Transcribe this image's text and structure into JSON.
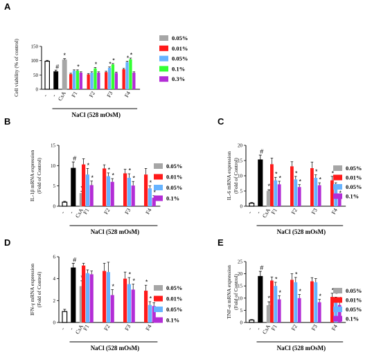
{
  "chart_data": [
    {
      "panel": "A",
      "type": "bar",
      "ylabel": "Cell viability (% of control)",
      "ylim": [
        0,
        150
      ],
      "yticks": [
        0,
        50,
        100,
        150
      ],
      "xlabel": "NaCl (528 mOsM)",
      "minus_labels": [
        "-",
        "-"
      ],
      "categories": [
        "CsA",
        "F1",
        "F2",
        "F3",
        "F4"
      ],
      "controls": [
        {
          "value": 98,
          "err": 3,
          "style": "outline",
          "marker": ""
        },
        {
          "value": 62,
          "err": 5,
          "style": "black",
          "marker": "#"
        },
        {
          "value": 103,
          "err": 4,
          "style": "gray",
          "marker": "*"
        }
      ],
      "legend": [
        "0.05%",
        "0.01%",
        "0.05%",
        "0.1%",
        "0.3%"
      ],
      "colors": [
        "#a6a6a6",
        "#ff1a1a",
        "#66b3ff",
        "#33ff33",
        "#b32dd6"
      ],
      "groups": [
        {
          "values": [
            53,
            65,
            65,
            58
          ],
          "errs": [
            3,
            3,
            3,
            3
          ],
          "markers": [
            "",
            "",
            "*",
            ""
          ]
        },
        {
          "values": [
            52,
            58,
            73,
            58
          ],
          "errs": [
            3,
            3,
            3,
            3
          ],
          "markers": [
            "",
            "",
            "*",
            ""
          ]
        },
        {
          "values": [
            60,
            75,
            87,
            57
          ],
          "errs": [
            3,
            3,
            3,
            3
          ],
          "markers": [
            "",
            "*",
            "*",
            ""
          ]
        },
        {
          "values": [
            70,
            95,
            105,
            58
          ],
          "errs": [
            3,
            3,
            4,
            3
          ],
          "markers": [
            "",
            "*",
            "*",
            ""
          ]
        }
      ]
    },
    {
      "panel": "B",
      "type": "bar",
      "ylabel": "IL-1β mRNA expression\n(Fold of Control)",
      "ylim": [
        0,
        15
      ],
      "yticks": [
        0,
        5,
        10,
        15
      ],
      "xlabel": "NaCl (528 mOsM)",
      "minus_labels": [
        "-",
        "-"
      ],
      "categories": [
        "CsA",
        "F1",
        "F2",
        "F3",
        "F4"
      ],
      "controls": [
        {
          "value": 1,
          "err": 0.2,
          "style": "outline",
          "marker": ""
        },
        {
          "value": 9.4,
          "err": 1.5,
          "style": "black",
          "marker": "#"
        },
        {
          "value": 3.2,
          "err": 0.5,
          "style": "gray",
          "marker": "*"
        }
      ],
      "legend": [
        "0.05%",
        "0.01%",
        "0.05%",
        "0.1%"
      ],
      "colors": [
        "#a6a6a6",
        "#ff1a1a",
        "#66b3ff",
        "#b32dd6"
      ],
      "groups": [
        {
          "values": [
            10.3,
            7.8,
            5.2
          ],
          "errs": [
            1.4,
            1.5,
            1.0
          ],
          "markers": [
            "",
            "*",
            "*"
          ]
        },
        {
          "values": [
            9.3,
            7.4,
            6.0
          ],
          "errs": [
            0.9,
            0.8,
            0.8
          ],
          "markers": [
            "",
            "*",
            "*"
          ]
        },
        {
          "values": [
            8.1,
            7.0,
            5.1
          ],
          "errs": [
            1.0,
            1.0,
            1.0
          ],
          "markers": [
            "",
            "*",
            "*"
          ]
        },
        {
          "values": [
            7.8,
            4.4,
            2.1
          ],
          "errs": [
            1.5,
            0.6,
            0.5
          ],
          "markers": [
            "",
            "*",
            "*"
          ]
        }
      ]
    },
    {
      "panel": "C",
      "type": "bar",
      "ylabel": "IL-6 mRNA expression\n(Fold of Control)",
      "ylim": [
        0,
        20
      ],
      "yticks": [
        0,
        5,
        10,
        15,
        20
      ],
      "xlabel": "NaCl (528 mOsM)",
      "minus_labels": [
        "-",
        "-"
      ],
      "categories": [
        "CsA",
        "F1",
        "F2",
        "F3",
        "F4"
      ],
      "controls": [
        {
          "value": 1,
          "err": 0.2,
          "style": "outline",
          "marker": ""
        },
        {
          "value": 15.3,
          "err": 1.5,
          "style": "black",
          "marker": "#"
        },
        {
          "value": 5,
          "err": 0.4,
          "style": "gray",
          "marker": "*"
        }
      ],
      "legend": [
        "0.05%",
        "0.01%",
        "0.05%",
        "0.1%"
      ],
      "colors": [
        "#a6a6a6",
        "#ff1a1a",
        "#66b3ff",
        "#b32dd6"
      ],
      "groups": [
        {
          "values": [
            13.8,
            8.5,
            7.2
          ],
          "errs": [
            2.0,
            1.0,
            1.0
          ],
          "markers": [
            "",
            "*",
            "*"
          ]
        },
        {
          "values": [
            13.1,
            8.8,
            6.3
          ],
          "errs": [
            1.5,
            1.0,
            0.8
          ],
          "markers": [
            "",
            "*",
            "*"
          ]
        },
        {
          "values": [
            12.5,
            9.3,
            6.9
          ],
          "errs": [
            2.0,
            1.0,
            0.8
          ],
          "markers": [
            "",
            "*",
            "*"
          ]
        },
        {
          "values": [
            8.5,
            6.9,
            2.8
          ],
          "errs": [
            1.3,
            0.8,
            0.5
          ],
          "markers": [
            "*",
            "*",
            "*"
          ]
        }
      ]
    },
    {
      "panel": "D",
      "type": "bar",
      "ylabel": "IFN-γ mRNA expression\n(Fold of Control)",
      "ylim": [
        0,
        6
      ],
      "yticks": [
        0,
        2,
        4,
        6
      ],
      "xlabel": "NaCl (528 mOsM)",
      "minus_labels": [
        "-",
        "-"
      ],
      "categories": [
        "CsA",
        "F1",
        "F2",
        "F3",
        "F4"
      ],
      "controls": [
        {
          "value": 1,
          "err": 0.2,
          "style": "outline",
          "marker": ""
        },
        {
          "value": 5.0,
          "err": 0.4,
          "style": "black",
          "marker": "#"
        },
        {
          "value": 3.3,
          "err": 0.5,
          "style": "gray",
          "marker": "*"
        }
      ],
      "legend": [
        "0.05%",
        "0.01%",
        "0.05%",
        "0.1%"
      ],
      "colors": [
        "#a6a6a6",
        "#ff1a1a",
        "#66b3ff",
        "#b32dd6"
      ],
      "groups": [
        {
          "values": [
            5.2,
            4.5,
            4.4
          ],
          "errs": [
            0.2,
            0.3,
            0.3
          ],
          "markers": [
            "",
            "",
            ""
          ]
        },
        {
          "values": [
            4.7,
            4.6,
            2.5
          ],
          "errs": [
            0.7,
            0.9,
            0.5
          ],
          "markers": [
            "",
            "",
            "*"
          ]
        },
        {
          "values": [
            4.0,
            3.5,
            3.0
          ],
          "errs": [
            0.6,
            0.6,
            0.5
          ],
          "markers": [
            "",
            "*",
            "*"
          ]
        },
        {
          "values": [
            2.9,
            1.6,
            1.5
          ],
          "errs": [
            0.5,
            0.3,
            0.3
          ],
          "markers": [
            "*",
            "*",
            "*"
          ]
        }
      ]
    },
    {
      "panel": "E",
      "type": "bar",
      "ylabel": "TNF-α mRNA expression\n(Fold of Control)",
      "ylim": [
        0,
        25
      ],
      "yticks": [
        0,
        5,
        10,
        15,
        20,
        25
      ],
      "xlabel": "NaCl (528 mOsM)",
      "minus_labels": [
        "-",
        "-"
      ],
      "categories": [
        "CsA",
        "F1",
        "F2",
        "F3",
        "F4"
      ],
      "controls": [
        {
          "value": 1,
          "err": 0.2,
          "style": "outline",
          "marker": ""
        },
        {
          "value": 19,
          "err": 2,
          "style": "black",
          "marker": "#"
        },
        {
          "value": 7,
          "err": 1.5,
          "style": "gray",
          "marker": "*"
        }
      ],
      "legend": [
        "0.05%",
        "0.01%",
        "0.05%",
        "0.1%"
      ],
      "colors": [
        "#a6a6a6",
        "#ff1a1a",
        "#66b3ff",
        "#b32dd6"
      ],
      "groups": [
        {
          "values": [
            17.2,
            15,
            9.5
          ],
          "errs": [
            1.5,
            1.5,
            1.5
          ],
          "markers": [
            "",
            "*",
            "*"
          ]
        },
        {
          "values": [
            17.5,
            16.5,
            10
          ],
          "errs": [
            2.5,
            2,
            1.5
          ],
          "markers": [
            "",
            "*",
            "*"
          ]
        },
        {
          "values": [
            16.9,
            16.5,
            8.3
          ],
          "errs": [
            1.5,
            1.5,
            1.2
          ],
          "markers": [
            "",
            "",
            "*"
          ]
        },
        {
          "values": [
            10.5,
            9.2,
            7.2
          ],
          "errs": [
            1.5,
            1.2,
            1.0
          ],
          "markers": [
            "*",
            "*",
            "*"
          ]
        }
      ]
    }
  ]
}
